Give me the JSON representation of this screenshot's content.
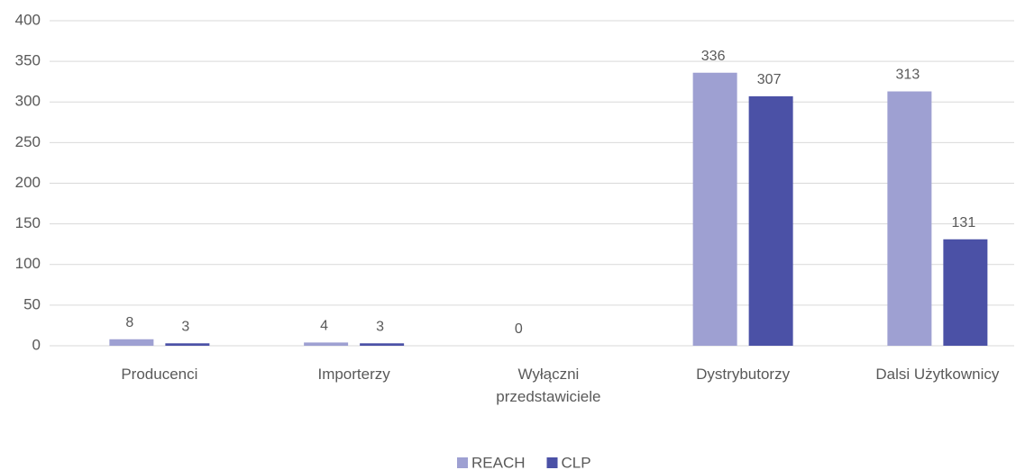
{
  "chart_data": {
    "type": "bar",
    "categories": [
      "Producenci",
      "Importerzy",
      "Wyłączni przedstawiciele",
      "Dystrybutorzy",
      "Dalsi Użytkownicy"
    ],
    "series": [
      {
        "name": "REACH",
        "color": "#9ea0d2",
        "values": [
          8,
          4,
          0,
          336,
          313
        ]
      },
      {
        "name": "CLP",
        "color": "#4b51a6",
        "values": [
          3,
          3,
          null,
          307,
          131
        ]
      }
    ],
    "ylim": [
      0,
      400
    ],
    "yticks": [
      0,
      50,
      100,
      150,
      200,
      250,
      300,
      350,
      400
    ],
    "grid": true,
    "legend": "bottom"
  }
}
